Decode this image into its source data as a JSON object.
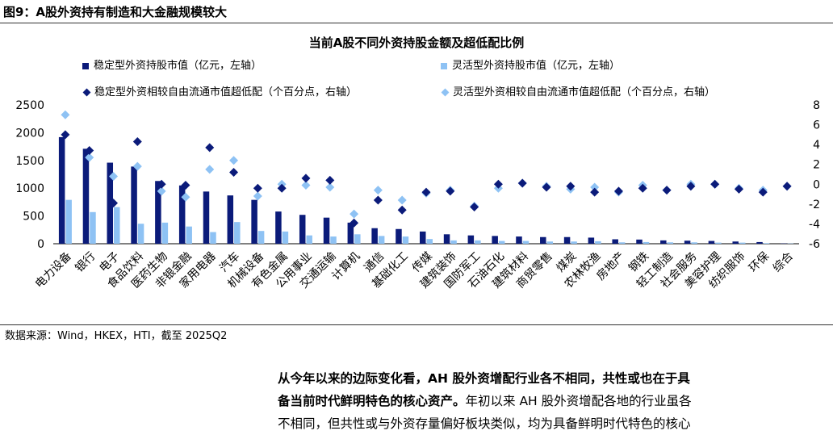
{
  "figure": {
    "title": "图9：A股外资持有制造和大金融规模较大",
    "source": "数据来源：Wind，HKEX，HTI，截至 2025Q2"
  },
  "legend": {
    "stable_bar": "稳定型外资持股市值（亿元，左轴）",
    "flex_bar": "灵活型外资持股市值（亿元，左轴）",
    "stable_dot": "稳定型外资相较自由流通市值超低配（个百分点，右轴）",
    "flex_dot": "灵活型外资相较自由流通市值超低配（个百分点，右轴）"
  },
  "colors": {
    "stable": "#0b1b7a",
    "flex": "#8ec2f4"
  },
  "chart_data": {
    "type": "bar",
    "title": "当前A股不同外资持股金额及超低配比例",
    "categories": [
      "电力设备",
      "银行",
      "电子",
      "食品饮料",
      "医药生物",
      "非银金融",
      "家用电器",
      "汽车",
      "机械设备",
      "有色金属",
      "公用事业",
      "交通运输",
      "计算机",
      "通信",
      "基础化工",
      "传媒",
      "建筑装饰",
      "国防军工",
      "石油石化",
      "建筑材料",
      "商贸零售",
      "煤炭",
      "农林牧渔",
      "房地产",
      "钢铁",
      "轻工制造",
      "社会服务",
      "美容护理",
      "纺织服饰",
      "环保",
      "综合"
    ],
    "y_left": {
      "lim": [
        0,
        2500
      ],
      "ticks": [
        "0",
        "500",
        "1000",
        "1500",
        "2000",
        "2500"
      ]
    },
    "y_right": {
      "lim": [
        -6,
        8
      ],
      "ticks": [
        "-6",
        "-4",
        "-2",
        "0",
        "2",
        "4",
        "6",
        "8"
      ]
    },
    "series": [
      {
        "name": "稳定型外资持股市值（亿元，左轴）",
        "kind": "bar",
        "axis": "left",
        "values": [
          1920,
          1710,
          1460,
          1390,
          1130,
          1050,
          940,
          870,
          790,
          580,
          520,
          470,
          380,
          280,
          265,
          220,
          170,
          150,
          140,
          130,
          120,
          120,
          110,
          80,
          75,
          60,
          55,
          50,
          40,
          30,
          5
        ]
      },
      {
        "name": "灵活型外资持股市值（亿元，左轴）",
        "kind": "bar",
        "axis": "left",
        "values": [
          790,
          570,
          660,
          360,
          380,
          310,
          210,
          390,
          230,
          220,
          150,
          130,
          170,
          140,
          130,
          85,
          60,
          60,
          50,
          50,
          40,
          40,
          45,
          25,
          30,
          25,
          25,
          20,
          20,
          10,
          5
        ]
      },
      {
        "name": "稳定型外资相较自由流通市值超低配（个百分点，右轴）",
        "kind": "dot",
        "axis": "right",
        "values": [
          5.0,
          3.4,
          -1.9,
          4.3,
          0.0,
          -0.1,
          3.7,
          1.2,
          -0.4,
          -0.4,
          0.6,
          0.4,
          -3.9,
          -1.6,
          -2.6,
          -0.8,
          -0.7,
          -2.3,
          0.0,
          0.1,
          -0.3,
          -0.2,
          -0.8,
          -0.7,
          -0.4,
          -0.6,
          -0.2,
          0.0,
          -0.5,
          -0.8,
          -0.2
        ]
      },
      {
        "name": "灵活型外资相较自由流通市值超低配（个百分点，右轴）",
        "kind": "dot",
        "axis": "right",
        "values": [
          7.0,
          2.7,
          0.8,
          1.8,
          -0.7,
          -1.3,
          1.5,
          2.4,
          -1.2,
          0.0,
          -0.1,
          -0.3,
          -3.0,
          -0.6,
          -1.6,
          -0.9,
          -0.6,
          -2.2,
          -0.4,
          0.1,
          -0.2,
          -0.5,
          -0.3,
          -0.8,
          -0.1,
          -0.6,
          0.0,
          0.0,
          -0.4,
          -0.6,
          -0.2
        ]
      }
    ]
  },
  "paragraph": {
    "line1_bold": "从今年以来的边际变化看，AH 股外资增配行业各不相同，共性或也在于具",
    "line2_bold": "备当前时代鲜明特色的核心资产。",
    "line2_rest": "年初以来 AH 股外资增配各地的行业虽各",
    "line3": "不相同，但共性或与外资存量偏好板块类似，均为具备鲜明时代特色的核心"
  }
}
